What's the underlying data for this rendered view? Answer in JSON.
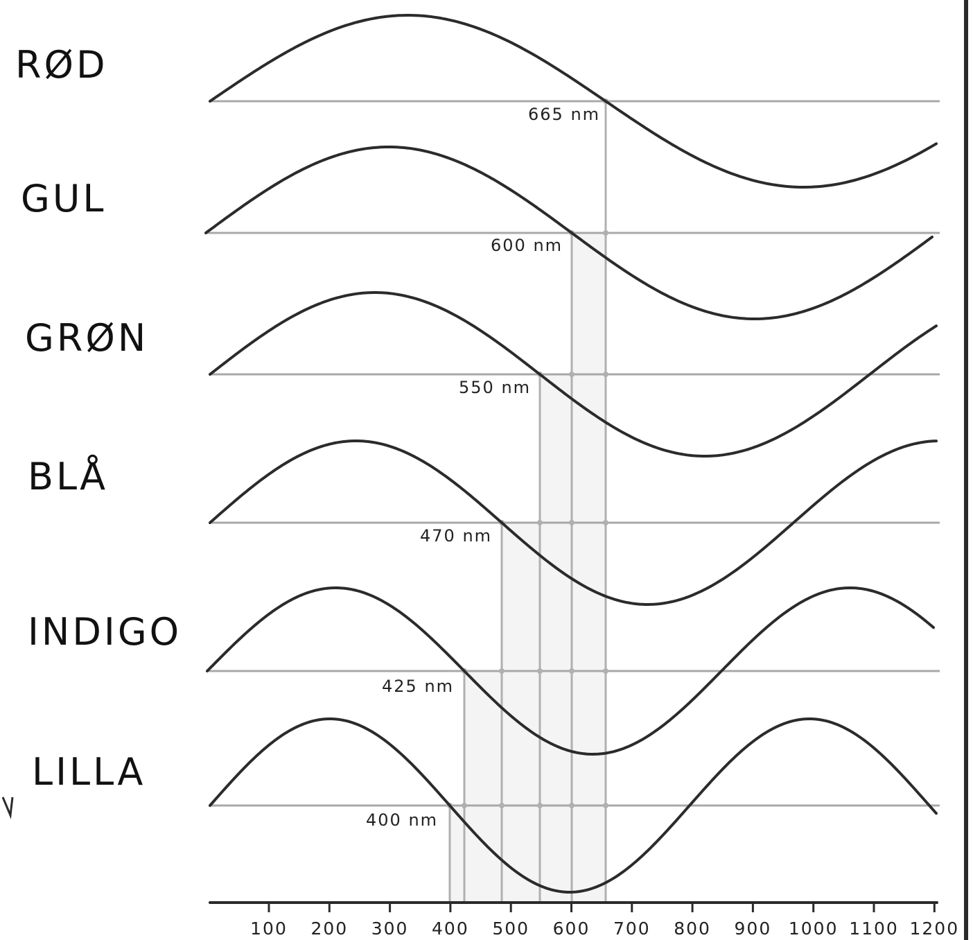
{
  "bands": [
    {
      "name": "RØD",
      "wavelength_label": "665 nm",
      "wavelength": 665
    },
    {
      "name": "GUL",
      "wavelength_label": "600 nm",
      "wavelength": 600
    },
    {
      "name": "GRØN",
      "wavelength_label": "550 nm",
      "wavelength": 550
    },
    {
      "name": "BLÅ",
      "wavelength_label": "470 nm",
      "wavelength": 470
    },
    {
      "name": "INDIGO",
      "wavelength_label": "425 nm",
      "wavelength": 425
    },
    {
      "name": "LILLA",
      "wavelength_label": "400 nm",
      "wavelength": 400
    }
  ],
  "axis": {
    "ticks": [
      "100",
      "200",
      "300",
      "400",
      "500",
      "600",
      "700",
      "800",
      "900",
      "1000",
      "1100",
      "1200"
    ]
  }
}
